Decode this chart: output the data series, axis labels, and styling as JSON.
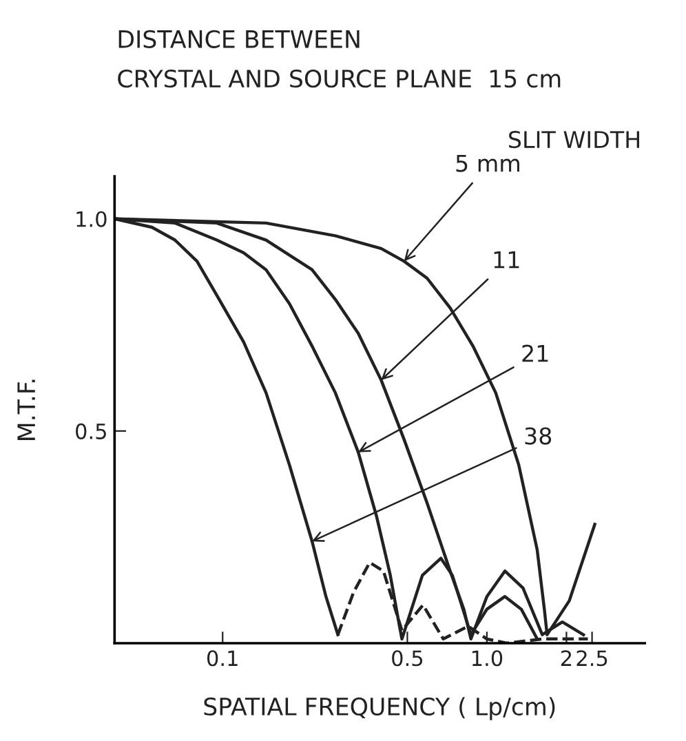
{
  "chart_data": {
    "type": "line",
    "title": "DISTANCE BETWEEN\nCRYSTAL AND SOURCE PLANE  15 cm",
    "legend_title": "SLIT WIDTH",
    "xlabel": "SPATIAL FREQUENCY ( Lp/cm)",
    "ylabel": "M.T.F.",
    "log": "x",
    "grid": false,
    "legend": false,
    "marker": "none",
    "xlim": [
      0.039,
      3.96
    ],
    "ylim": [
      0,
      1.1
    ],
    "xticks": [
      0.1,
      0.5,
      {
        "value": 1,
        "label": "1.0"
      },
      2,
      2.5
    ],
    "yticks": [
      0.5,
      {
        "value": 1,
        "label": "1.0"
      }
    ],
    "annotations": [
      {
        "text": "5 mm",
        "x": 0.486,
        "y": 0.9
      },
      {
        "text": "11",
        "x": 0.398,
        "y": 0.62
      },
      {
        "text": "21",
        "x": 0.326,
        "y": 0.45
      },
      {
        "text": "38",
        "x": 0.218,
        "y": 0.24
      }
    ],
    "series": [
      {
        "color": "#222222",
        "line_style": "solid",
        "x": [
          0.039,
          0.146,
          0.267,
          0.398,
          0.486,
          0.594,
          0.726,
          0.886,
          1.08,
          1.32,
          1.55,
          1.65,
          1.69,
          2.05,
          2.56
        ],
        "values": [
          1.0,
          0.99,
          0.96,
          0.93,
          0.9,
          0.86,
          0.79,
          0.7,
          0.59,
          0.42,
          0.22,
          0.08,
          0.02,
          0.1,
          0.28
        ]
      },
      {
        "color": "#222222",
        "line_style": "solid",
        "x": [
          0.039,
          0.095,
          0.146,
          0.218,
          0.267,
          0.326,
          0.398,
          0.486,
          0.594,
          0.726,
          0.818,
          0.87,
          1.0,
          1.17,
          1.37,
          1.62,
          1.93,
          2.32
        ],
        "values": [
          1.0,
          0.99,
          0.95,
          0.88,
          0.81,
          0.73,
          0.62,
          0.48,
          0.33,
          0.17,
          0.08,
          0.01,
          0.11,
          0.17,
          0.13,
          0.02,
          0.05,
          0.02
        ]
      },
      {
        "color": "#222222",
        "line_style": "solid",
        "x": [
          0.039,
          0.066,
          0.095,
          0.12,
          0.146,
          0.179,
          0.218,
          0.267,
          0.326,
          0.382,
          0.431,
          0.467,
          0.477,
          0.57,
          0.67,
          0.74,
          0.87,
          1.0,
          1.17,
          1.35,
          1.55
        ],
        "values": [
          1.0,
          0.99,
          0.95,
          0.92,
          0.88,
          0.8,
          0.7,
          0.59,
          0.45,
          0.3,
          0.16,
          0.04,
          0.01,
          0.16,
          0.2,
          0.16,
          0.02,
          0.08,
          0.11,
          0.08,
          0.01
        ]
      },
      {
        "color": "#222222",
        "line_style": "solid",
        "x": [
          0.039,
          0.054,
          0.066,
          0.08,
          0.095,
          0.12,
          0.146,
          0.179,
          0.218,
          0.246,
          0.273
        ],
        "values": [
          1.0,
          0.98,
          0.95,
          0.9,
          0.82,
          0.71,
          0.59,
          0.42,
          0.24,
          0.11,
          0.02
        ]
      },
      {
        "color": "#222222",
        "line_style": "dashed",
        "x": [
          0.273,
          0.313,
          0.36,
          0.406,
          0.477,
          0.573,
          0.684,
          0.85,
          1.0,
          1.19,
          1.62,
          2.41
        ],
        "values": [
          0.02,
          0.12,
          0.19,
          0.17,
          0.03,
          0.09,
          0.01,
          0.04,
          0.01,
          0.0,
          0.01,
          0.01
        ]
      }
    ]
  }
}
